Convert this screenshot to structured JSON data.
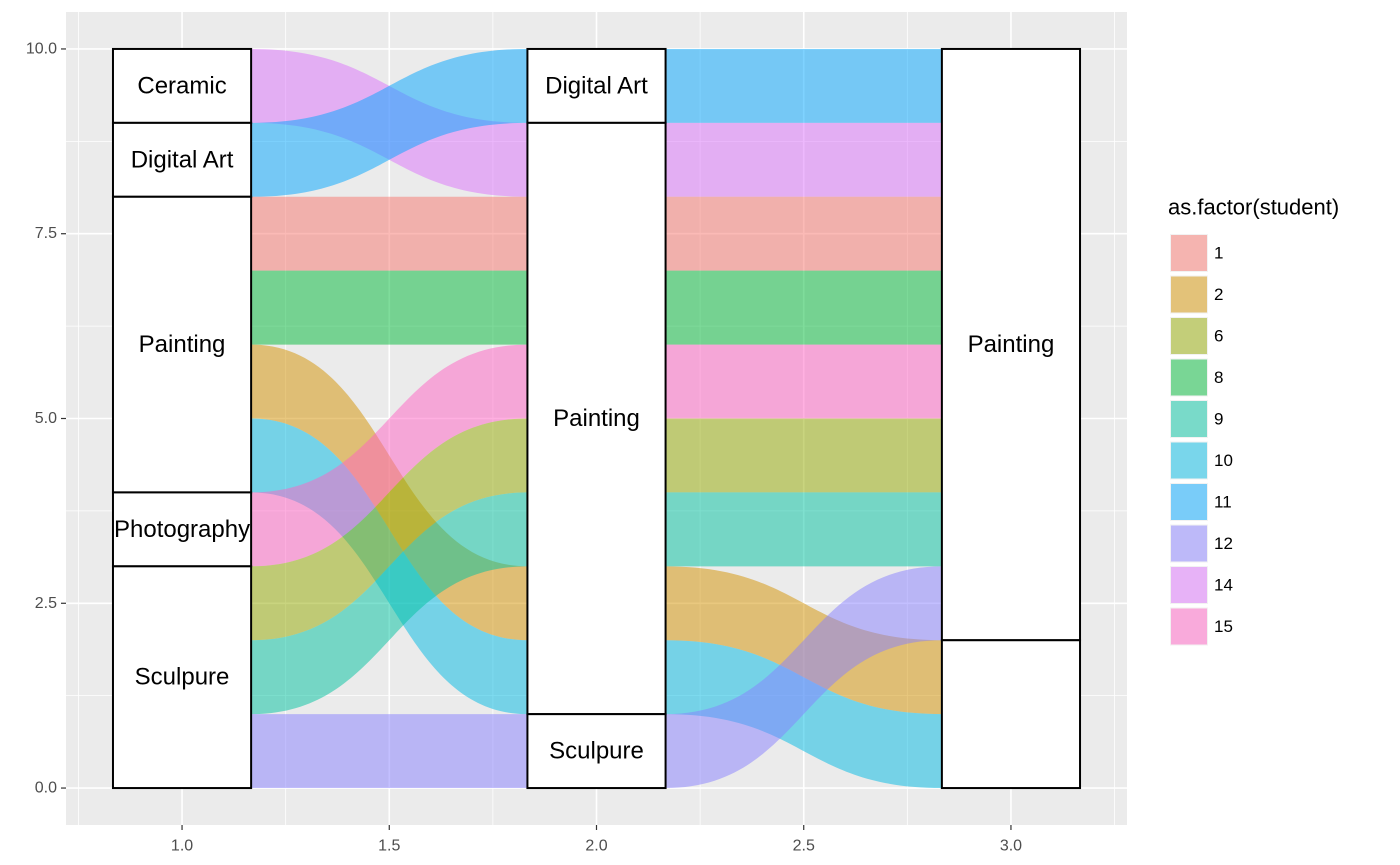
{
  "chart_data": {
    "type": "alluvial",
    "title": "",
    "xlabel": "",
    "ylabel": "",
    "xlim": [
      0.72,
      3.28
    ],
    "ylim": [
      -0.5,
      10.5
    ],
    "x_ticks": [
      "1.0",
      "1.5",
      "2.0",
      "2.5",
      "3.0"
    ],
    "y_ticks": [
      "0.0",
      "2.5",
      "5.0",
      "7.5",
      "10.0"
    ],
    "x_tick_values": [
      1.0,
      1.5,
      2.0,
      2.5,
      3.0
    ],
    "y_tick_values": [
      0.0,
      2.5,
      5.0,
      7.5,
      10.0
    ],
    "grid": true,
    "legend_position": "right",
    "legend": {
      "title": "as.factor(student)",
      "entries": [
        {
          "label": "1",
          "color": "#F8766D"
        },
        {
          "label": "2",
          "color": "#D39200"
        },
        {
          "label": "6",
          "color": "#93AA00"
        },
        {
          "label": "8",
          "color": "#00BA38"
        },
        {
          "label": "9",
          "color": "#00C19F"
        },
        {
          "label": "10",
          "color": "#00B9E3"
        },
        {
          "label": "11",
          "color": "#00A5FF"
        },
        {
          "label": "12",
          "color": "#8780FF"
        },
        {
          "label": "14",
          "color": "#DB72FB"
        },
        {
          "label": "15",
          "color": "#FF61C3"
        }
      ]
    },
    "axes": [
      1,
      2,
      3
    ],
    "strata": [
      {
        "axis": 1,
        "label": "Ceramic",
        "ymin": 9,
        "ymax": 10
      },
      {
        "axis": 1,
        "label": "Digital Art",
        "ymin": 8,
        "ymax": 9
      },
      {
        "axis": 1,
        "label": "Painting",
        "ymin": 4,
        "ymax": 8
      },
      {
        "axis": 1,
        "label": "Photography",
        "ymin": 3,
        "ymax": 4
      },
      {
        "axis": 1,
        "label": "Sculpure",
        "ymin": 0,
        "ymax": 3
      },
      {
        "axis": 2,
        "label": "Digital Art",
        "ymin": 9,
        "ymax": 10
      },
      {
        "axis": 2,
        "label": "Painting",
        "ymin": 1,
        "ymax": 9
      },
      {
        "axis": 2,
        "label": "Sculpure",
        "ymin": 0,
        "ymax": 1
      },
      {
        "axis": 3,
        "label": "Painting",
        "ymin": 2,
        "ymax": 10
      },
      {
        "axis": 3,
        "label": "",
        "ymin": 0,
        "ymax": 2
      }
    ],
    "flows": [
      {
        "student": "14",
        "from_axis": 1,
        "to_axis": 2,
        "y0": [
          9,
          10
        ],
        "y1": [
          8,
          9
        ]
      },
      {
        "student": "11",
        "from_axis": 1,
        "to_axis": 2,
        "y0": [
          8,
          9
        ],
        "y1": [
          9,
          10
        ]
      },
      {
        "student": "1",
        "from_axis": 1,
        "to_axis": 2,
        "y0": [
          7,
          8
        ],
        "y1": [
          7,
          8
        ]
      },
      {
        "student": "8",
        "from_axis": 1,
        "to_axis": 2,
        "y0": [
          6,
          7
        ],
        "y1": [
          6,
          7
        ]
      },
      {
        "student": "2",
        "from_axis": 1,
        "to_axis": 2,
        "y0": [
          5,
          6
        ],
        "y1": [
          2,
          3
        ]
      },
      {
        "student": "10",
        "from_axis": 1,
        "to_axis": 2,
        "y0": [
          4,
          5
        ],
        "y1": [
          1,
          2
        ]
      },
      {
        "student": "15",
        "from_axis": 1,
        "to_axis": 2,
        "y0": [
          3,
          4
        ],
        "y1": [
          5,
          6
        ]
      },
      {
        "student": "6",
        "from_axis": 1,
        "to_axis": 2,
        "y0": [
          2,
          3
        ],
        "y1": [
          4,
          5
        ]
      },
      {
        "student": "9",
        "from_axis": 1,
        "to_axis": 2,
        "y0": [
          1,
          2
        ],
        "y1": [
          3,
          4
        ]
      },
      {
        "student": "12",
        "from_axis": 1,
        "to_axis": 2,
        "y0": [
          0,
          1
        ],
        "y1": [
          0,
          1
        ]
      },
      {
        "student": "11",
        "from_axis": 2,
        "to_axis": 3,
        "y0": [
          9,
          10
        ],
        "y1": [
          9,
          10
        ]
      },
      {
        "student": "14",
        "from_axis": 2,
        "to_axis": 3,
        "y0": [
          8,
          9
        ],
        "y1": [
          8,
          9
        ]
      },
      {
        "student": "1",
        "from_axis": 2,
        "to_axis": 3,
        "y0": [
          7,
          8
        ],
        "y1": [
          7,
          8
        ]
      },
      {
        "student": "8",
        "from_axis": 2,
        "to_axis": 3,
        "y0": [
          6,
          7
        ],
        "y1": [
          6,
          7
        ]
      },
      {
        "student": "15",
        "from_axis": 2,
        "to_axis": 3,
        "y0": [
          5,
          6
        ],
        "y1": [
          5,
          6
        ]
      },
      {
        "student": "6",
        "from_axis": 2,
        "to_axis": 3,
        "y0": [
          4,
          5
        ],
        "y1": [
          4,
          5
        ]
      },
      {
        "student": "9",
        "from_axis": 2,
        "to_axis": 3,
        "y0": [
          3,
          4
        ],
        "y1": [
          3,
          4
        ]
      },
      {
        "student": "2",
        "from_axis": 2,
        "to_axis": 3,
        "y0": [
          2,
          3
        ],
        "y1": [
          1,
          2
        ]
      },
      {
        "student": "10",
        "from_axis": 2,
        "to_axis": 3,
        "y0": [
          1,
          2
        ],
        "y1": [
          0,
          1
        ]
      },
      {
        "student": "12",
        "from_axis": 2,
        "to_axis": 3,
        "y0": [
          0,
          1
        ],
        "y1": [
          2,
          3
        ]
      }
    ]
  }
}
